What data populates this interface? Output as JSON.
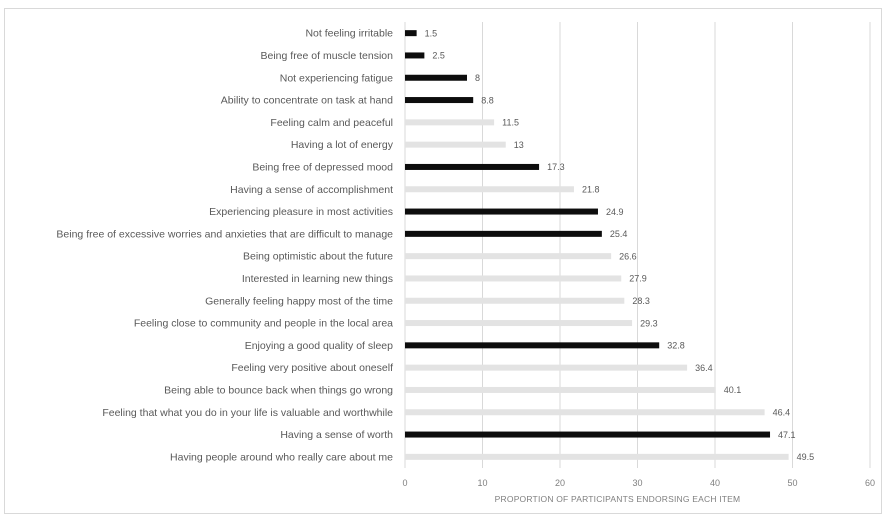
{
  "chart_data": {
    "type": "bar",
    "orientation": "horizontal",
    "title": "",
    "xlabel": "PROPORTION OF PARTICIPANTS ENDORSING EACH ITEM",
    "ylabel": "",
    "xlim": [
      0,
      60
    ],
    "xticks": [
      0,
      10,
      20,
      30,
      40,
      50,
      60
    ],
    "grid": "vertical",
    "colors": {
      "dark": "#0d0d0d",
      "light": "#e3e3e3"
    },
    "items": [
      {
        "label": "Not feeling irritable",
        "value": 1.5,
        "color": "dark"
      },
      {
        "label": "Being free of muscle tension",
        "value": 2.5,
        "color": "dark"
      },
      {
        "label": "Not experiencing fatigue",
        "value": 8,
        "color": "dark"
      },
      {
        "label": "Ability to concentrate on task at hand",
        "value": 8.8,
        "color": "dark"
      },
      {
        "label": "Feeling calm and peaceful",
        "value": 11.5,
        "color": "light"
      },
      {
        "label": "Having a lot of energy",
        "value": 13,
        "color": "light"
      },
      {
        "label": "Being free of depressed mood",
        "value": 17.3,
        "color": "dark"
      },
      {
        "label": "Having a sense of accomplishment",
        "value": 21.8,
        "color": "light"
      },
      {
        "label": "Experiencing pleasure in most activities",
        "value": 24.9,
        "color": "dark"
      },
      {
        "label": "Being free of excessive worries and anxieties that are difficult to manage",
        "value": 25.4,
        "color": "dark"
      },
      {
        "label": "Being optimistic about the future",
        "value": 26.6,
        "color": "light"
      },
      {
        "label": "Interested in learning new things",
        "value": 27.9,
        "color": "light"
      },
      {
        "label": "Generally feeling happy most of the time",
        "value": 28.3,
        "color": "light"
      },
      {
        "label": "Feeling close to community and people in the local area",
        "value": 29.3,
        "color": "light"
      },
      {
        "label": "Enjoying a good quality of sleep",
        "value": 32.8,
        "color": "dark"
      },
      {
        "label": "Feeling very positive about oneself",
        "value": 36.4,
        "color": "light"
      },
      {
        "label": "Being able to bounce back when things go wrong",
        "value": 40.1,
        "color": "light"
      },
      {
        "label": "Feeling that what you do in your life is valuable and worthwhile",
        "value": 46.4,
        "color": "light"
      },
      {
        "label": "Having a sense of worth",
        "value": 47.1,
        "color": "dark"
      },
      {
        "label": "Having people around who really care about me",
        "value": 49.5,
        "color": "light"
      }
    ]
  }
}
